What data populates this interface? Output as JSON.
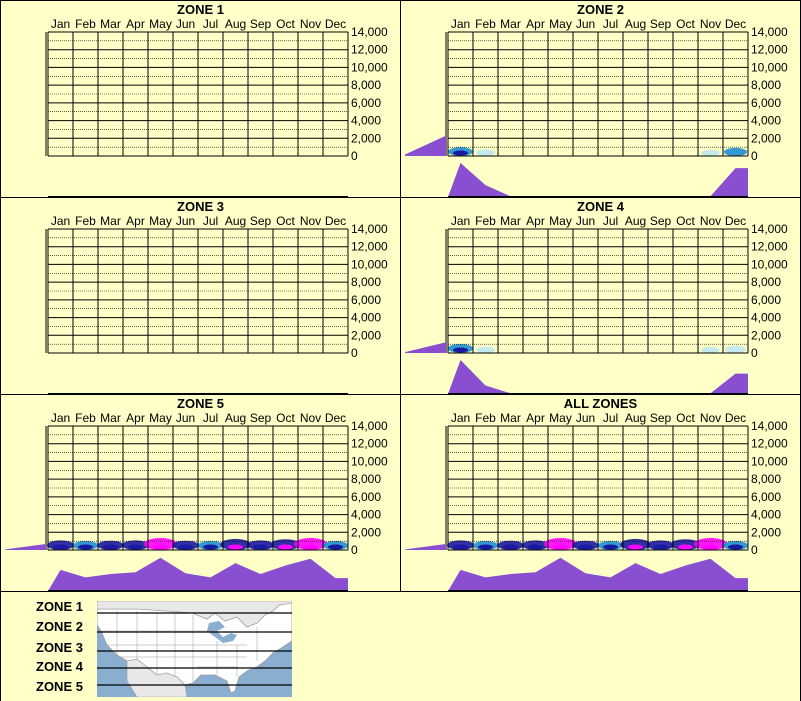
{
  "months": [
    "Jan",
    "Feb",
    "Mar",
    "Apr",
    "May",
    "Jun",
    "Jul",
    "Aug",
    "Sep",
    "Oct",
    "Nov",
    "Dec"
  ],
  "y_ticks": [
    "14,000",
    "12,000",
    "10,000",
    "8,000",
    "6,000",
    "4,000",
    "2,000",
    "0"
  ],
  "colors": {
    "background": "#ffffc8",
    "grid": "#000000",
    "profile_fill": "#8a4fd0",
    "density_low": "#bfe8f0",
    "density_mid": "#1f8fd0",
    "density_high": "#1a1aa0",
    "density_peak": "#ff00ff"
  },
  "chart_data": [
    {
      "type": "heatmap",
      "title": "ZONE 1",
      "x": [
        "Jan",
        "Feb",
        "Mar",
        "Apr",
        "May",
        "Jun",
        "Jul",
        "Aug",
        "Sep",
        "Oct",
        "Nov",
        "Dec"
      ],
      "ylim": [
        0,
        14000
      ],
      "monthly_profile": [
        0,
        0,
        0,
        0,
        0,
        0,
        0,
        0,
        0,
        0,
        0,
        0
      ],
      "altitude_profile": [
        0,
        0
      ],
      "density": [
        0,
        0,
        0,
        0,
        0,
        0,
        0,
        0,
        0,
        0,
        0,
        0
      ]
    },
    {
      "type": "heatmap",
      "title": "ZONE 2",
      "x": [
        "Jan",
        "Feb",
        "Mar",
        "Apr",
        "May",
        "Jun",
        "Jul",
        "Aug",
        "Sep",
        "Oct",
        "Nov",
        "Dec"
      ],
      "ylim": [
        0,
        14000
      ],
      "monthly_profile": [
        1.0,
        0.35,
        0.02,
        0,
        0,
        0,
        0,
        0,
        0,
        0,
        0.02,
        0.85
      ],
      "altitude_profile": [
        0.25,
        0.85
      ],
      "density": [
        0.45,
        0.08,
        0,
        0,
        0,
        0,
        0,
        0,
        0,
        0,
        0.02,
        0.35
      ]
    },
    {
      "type": "heatmap",
      "title": "ZONE 3",
      "x": [
        "Jan",
        "Feb",
        "Mar",
        "Apr",
        "May",
        "Jun",
        "Jul",
        "Aug",
        "Sep",
        "Oct",
        "Nov",
        "Dec"
      ],
      "ylim": [
        0,
        14000
      ],
      "monthly_profile": [
        0,
        0,
        0,
        0,
        0,
        0,
        0,
        0,
        0,
        0,
        0,
        0
      ],
      "altitude_profile": [
        0,
        0
      ],
      "density": [
        0,
        0,
        0,
        0,
        0,
        0,
        0,
        0,
        0,
        0,
        0,
        0
      ]
    },
    {
      "type": "heatmap",
      "title": "ZONE 4",
      "x": [
        "Jan",
        "Feb",
        "Mar",
        "Apr",
        "May",
        "Jun",
        "Jul",
        "Aug",
        "Sep",
        "Oct",
        "Nov",
        "Dec"
      ],
      "ylim": [
        0,
        14000
      ],
      "monthly_profile": [
        1.0,
        0.25,
        0.02,
        0,
        0,
        0,
        0,
        0,
        0,
        0,
        0.02,
        0.6
      ],
      "altitude_profile": [
        0.15,
        0.45
      ],
      "density": [
        0.5,
        0.05,
        0,
        0,
        0,
        0,
        0,
        0,
        0,
        0,
        0.02,
        0.2
      ]
    },
    {
      "type": "heatmap",
      "title": "ZONE 5",
      "x": [
        "Jan",
        "Feb",
        "Mar",
        "Apr",
        "May",
        "Jun",
        "Jul",
        "Aug",
        "Sep",
        "Oct",
        "Nov",
        "Dec"
      ],
      "ylim": [
        0,
        14000
      ],
      "monthly_profile": [
        0.62,
        0.4,
        0.5,
        0.55,
        0.98,
        0.52,
        0.4,
        0.82,
        0.5,
        0.75,
        0.95,
        0.38
      ],
      "altitude_profile": [
        0.1,
        0.25
      ],
      "density": [
        0.6,
        0.5,
        0.55,
        0.6,
        1.0,
        0.55,
        0.5,
        0.85,
        0.6,
        0.8,
        1.0,
        0.5
      ]
    },
    {
      "type": "heatmap",
      "title": "ALL ZONES",
      "x": [
        "Jan",
        "Feb",
        "Mar",
        "Apr",
        "May",
        "Jun",
        "Jul",
        "Aug",
        "Sep",
        "Oct",
        "Nov",
        "Dec"
      ],
      "ylim": [
        0,
        14000
      ],
      "monthly_profile": [
        0.62,
        0.4,
        0.5,
        0.55,
        0.98,
        0.52,
        0.4,
        0.82,
        0.5,
        0.75,
        0.95,
        0.38
      ],
      "altitude_profile": [
        0.1,
        0.25
      ],
      "density": [
        0.6,
        0.5,
        0.55,
        0.6,
        1.0,
        0.55,
        0.5,
        0.85,
        0.6,
        0.8,
        1.0,
        0.5
      ]
    }
  ],
  "zone_legend": {
    "labels": [
      "ZONE 1",
      "ZONE 2",
      "ZONE 3",
      "ZONE 4",
      "ZONE 5"
    ]
  }
}
